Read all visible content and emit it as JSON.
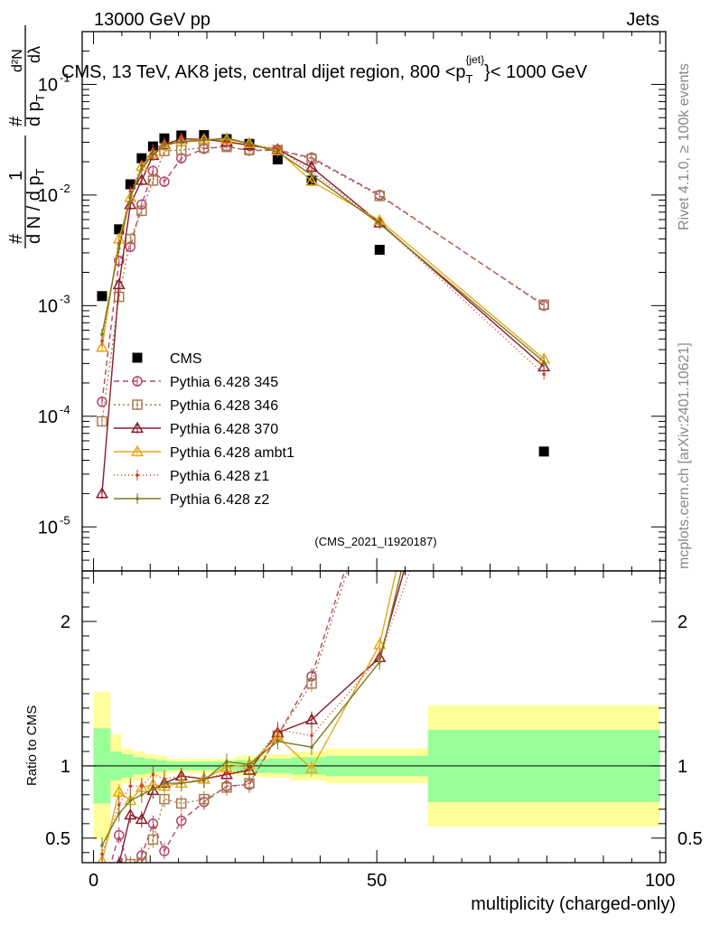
{
  "header": {
    "left": "13000 GeV pp",
    "right": "Jets"
  },
  "side_text": {
    "top": "Rivet 4.1.0, ≥ 100k events",
    "bottom": "mcplots.cern.ch [arXiv:2401.10621]"
  },
  "chart_data": {
    "type": "scatter",
    "title": "CMS, 13 TeV, AK8 jets, central dijet region, 800 <p_T^{jet}< 1000 GeV",
    "title_main": "CMS, 13 TeV, AK8 jets, central dijet region, 800 <p",
    "title_sup": "{jet}",
    "title_sub": "T",
    "title_tail": "}< 1000 GeV",
    "analysis_tag": "(CMS_2021_I1920187)",
    "xlabel": "multiplicity (charged-only)",
    "ylabel_ratio": "Ratio to CMS",
    "ylabel_main": {
      "hash": "#",
      "one": "1",
      "denom": "d N / d p",
      "denom_sub": "T",
      "dp": "d p",
      "dp_sub": "T",
      "dlambda": "dλ",
      "d2n": "d²N",
      "d2n_sup": "2"
    },
    "xlim": [
      -2,
      101
    ],
    "ylim_main": [
      4e-06,
      0.3
    ],
    "ylim_ratio": [
      0.33,
      2.35
    ],
    "y_scale": "log",
    "x_ticks": [
      0,
      50,
      100
    ],
    "y_ticks_main_labels": [
      "10⁻¹",
      "10⁻²",
      "10⁻³",
      "10⁻⁴",
      "10⁻⁵"
    ],
    "y_ticks_main_values": [
      0.1,
      0.01,
      0.001,
      0.0001,
      1e-05
    ],
    "y_ticks_main_exp": [
      "-1",
      "-2",
      "-3",
      "-4",
      "-5"
    ],
    "y_ticks_ratio": [
      0.5,
      1,
      2
    ],
    "legend_position": "lower-left",
    "x": [
      1.5,
      4.5,
      6.5,
      8.5,
      10.5,
      12.5,
      15.5,
      19.5,
      23.5,
      27.5,
      32.5,
      38.5,
      50.5,
      79.5
    ],
    "bins": [
      [
        0,
        3
      ],
      [
        3,
        5
      ],
      [
        5,
        7
      ],
      [
        7,
        9
      ],
      [
        9,
        11
      ],
      [
        11,
        13
      ],
      [
        13,
        17
      ],
      [
        17,
        21
      ],
      [
        21,
        25
      ],
      [
        25,
        29
      ],
      [
        29,
        35
      ],
      [
        35,
        41
      ],
      [
        41,
        59
      ],
      [
        59,
        100
      ]
    ],
    "band_inner": [
      0.26,
      0.1,
      0.08,
      0.06,
      0.05,
      0.04,
      0.03,
      0.03,
      0.03,
      0.04,
      0.05,
      0.06,
      0.07,
      0.25
    ],
    "band_outer": [
      0.51,
      0.22,
      0.12,
      0.1,
      0.08,
      0.07,
      0.05,
      0.05,
      0.05,
      0.07,
      0.08,
      0.1,
      0.12,
      0.42
    ],
    "series": [
      {
        "name": "CMS",
        "role": "data",
        "marker": "filled-square",
        "color": "#000000",
        "values": [
          0.00122,
          0.0049,
          0.0125,
          0.0215,
          0.0275,
          0.0325,
          0.0345,
          0.0348,
          0.032,
          0.029,
          0.021,
          0.0135,
          0.0032,
          4.8e-05
        ]
      },
      {
        "name": "Pythia 6.428 345",
        "marker": "open-circle",
        "dash": "6,4",
        "color": "#b5466a",
        "values": [
          0.000135,
          0.00255,
          0.0034,
          0.0082,
          0.0165,
          0.0132,
          0.0215,
          0.0262,
          0.0275,
          0.0252,
          0.0255,
          0.0218,
          0.01,
          0.001
        ],
        "ratio": [
          0.11,
          0.52,
          0.27,
          0.38,
          0.6,
          0.41,
          0.62,
          0.75,
          0.86,
          0.87,
          1.21,
          1.62,
          3.12,
          20.8
        ]
      },
      {
        "name": "Pythia 6.428 346",
        "marker": "open-square",
        "dash": "2,3",
        "color": "#a87b4a",
        "values": [
          9e-05,
          0.0012,
          0.004,
          0.0072,
          0.0135,
          0.025,
          0.0255,
          0.0268,
          0.0272,
          0.0255,
          0.0255,
          0.0212,
          0.0098,
          0.00102
        ],
        "ratio": [
          0.07,
          0.24,
          0.32,
          0.33,
          0.49,
          0.77,
          0.74,
          0.77,
          0.85,
          0.88,
          1.21,
          1.57,
          3.06,
          21.2
        ]
      },
      {
        "name": "Pythia 6.428 370",
        "marker": "open-triangle",
        "dash": "",
        "color": "#8b1a2b",
        "values": [
          2e-05,
          0.00155,
          0.0082,
          0.0136,
          0.0228,
          0.0285,
          0.0322,
          0.0318,
          0.0302,
          0.0282,
          0.0258,
          0.0178,
          0.0056,
          0.00028
        ],
        "ratio": [
          0.02,
          0.32,
          0.66,
          0.63,
          0.83,
          0.88,
          0.93,
          0.91,
          0.94,
          0.97,
          1.23,
          1.32,
          1.75,
          5.8
        ]
      },
      {
        "name": "Pythia 6.428 ambt1",
        "marker": "open-triangle",
        "dash": "",
        "color": "#e6a817",
        "values": [
          0.00042,
          0.004,
          0.0095,
          0.0182,
          0.0238,
          0.0278,
          0.0305,
          0.0318,
          0.0318,
          0.0292,
          0.0252,
          0.0133,
          0.0059,
          0.00033
        ],
        "ratio": [
          0.34,
          0.82,
          0.76,
          0.85,
          0.87,
          0.86,
          0.88,
          0.91,
          0.99,
          1.01,
          1.2,
          0.98,
          1.84,
          6.9
        ]
      },
      {
        "name": "Pythia 6.428 z1",
        "marker": "dot",
        "dash": "1,3",
        "color": "#d93b1f",
        "values": [
          0.00048,
          0.0036,
          0.0108,
          0.0185,
          0.0258,
          0.0295,
          0.0322,
          0.0318,
          0.0305,
          0.0285,
          0.0262,
          0.0163,
          0.0056,
          0.00024
        ],
        "ratio": [
          0.39,
          0.73,
          0.86,
          0.86,
          0.94,
          0.91,
          0.93,
          0.91,
          0.95,
          0.98,
          1.25,
          1.21,
          1.75,
          5.0
        ]
      },
      {
        "name": "Pythia 6.428 z2",
        "marker": "dot",
        "dash": "",
        "color": "#7a7a1e",
        "values": [
          0.00055,
          0.0033,
          0.0095,
          0.0172,
          0.0232,
          0.0285,
          0.0302,
          0.0312,
          0.0328,
          0.0292,
          0.0245,
          0.0152,
          0.0055,
          0.00031
        ],
        "ratio": [
          0.45,
          0.67,
          0.76,
          0.8,
          0.84,
          0.88,
          0.88,
          0.9,
          1.03,
          1.01,
          1.17,
          1.13,
          1.72,
          6.5
        ]
      }
    ]
  }
}
